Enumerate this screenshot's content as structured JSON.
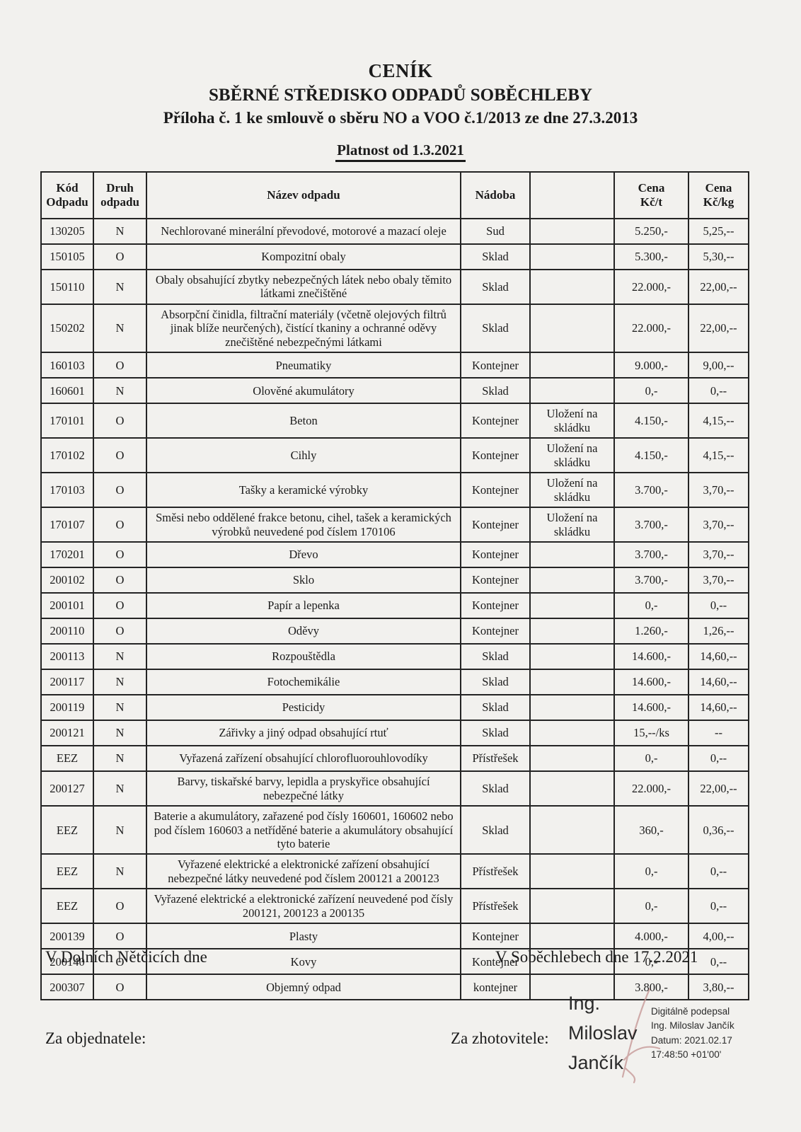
{
  "header": {
    "title": "CENÍK",
    "subtitle": "SBĚRNÉ STŘEDISKO ODPADŮ SOBĚCHLEBY",
    "attachment": "Příloha č. 1 ke smlouvě o sběru NO a VOO č.1/2013 ze dne 27.3.2013",
    "validity": "Platnost od 1.3.2021"
  },
  "table": {
    "headers": {
      "code": "Kód\nOdpadu",
      "type": "Druh\nodpadu",
      "name": "Název odpadu",
      "container": "Nádoba",
      "note": "",
      "price_t": "Cena\nKč/t",
      "price_kg": "Cena\nKč/kg"
    },
    "rows": [
      {
        "code": "130205",
        "type": "N",
        "name": "Nechlorované minerální převodové, motorové a mazací oleje",
        "container": "Sud",
        "note": "",
        "price_t": "5.250,-",
        "price_kg": "5,25,--"
      },
      {
        "code": "150105",
        "type": "O",
        "name": "Kompozitní obaly",
        "container": "Sklad",
        "note": "",
        "price_t": "5.300,-",
        "price_kg": "5,30,--"
      },
      {
        "code": "150110",
        "type": "N",
        "name": "Obaly obsahující zbytky nebezpečných látek nebo obaly těmito látkami znečištěné",
        "container": "Sklad",
        "note": "",
        "price_t": "22.000,-",
        "price_kg": "22,00,--"
      },
      {
        "code": "150202",
        "type": "N",
        "name": "Absorpční činidla, filtrační materiály (včetně olejových filtrů jinak blíže neurčených), čistící tkaniny a ochranné oděvy znečištěné nebezpečnými látkami",
        "container": "Sklad",
        "note": "",
        "price_t": "22.000,-",
        "price_kg": "22,00,--"
      },
      {
        "code": "160103",
        "type": "O",
        "name": "Pneumatiky",
        "container": "Kontejner",
        "note": "",
        "price_t": "9.000,-",
        "price_kg": "9,00,--"
      },
      {
        "code": "160601",
        "type": "N",
        "name": "Olověné akumulátory",
        "container": "Sklad",
        "note": "",
        "price_t": "0,-",
        "price_kg": "0,--"
      },
      {
        "code": "170101",
        "type": "O",
        "name": "Beton",
        "container": "Kontejner",
        "note": "Uložení na skládku",
        "price_t": "4.150,-",
        "price_kg": "4,15,--"
      },
      {
        "code": "170102",
        "type": "O",
        "name": "Cihly",
        "container": "Kontejner",
        "note": "Uložení na skládku",
        "price_t": "4.150,-",
        "price_kg": "4,15,--"
      },
      {
        "code": "170103",
        "type": "O",
        "name": "Tašky a keramické výrobky",
        "container": "Kontejner",
        "note": "Uložení na skládku",
        "price_t": "3.700,-",
        "price_kg": "3,70,--"
      },
      {
        "code": "170107",
        "type": "O",
        "name": "Směsi nebo oddělené frakce betonu, cihel, tašek a keramických výrobků neuvedené pod číslem 170106",
        "container": "Kontejner",
        "note": "Uložení na skládku",
        "price_t": "3.700,-",
        "price_kg": "3,70,--"
      },
      {
        "code": "170201",
        "type": "O",
        "name": "Dřevo",
        "container": "Kontejner",
        "note": "",
        "price_t": "3.700,-",
        "price_kg": "3,70,--"
      },
      {
        "code": "200102",
        "type": "O",
        "name": "Sklo",
        "container": "Kontejner",
        "note": "",
        "price_t": "3.700,-",
        "price_kg": "3,70,--"
      },
      {
        "code": "200101",
        "type": "O",
        "name": "Papír a lepenka",
        "container": "Kontejner",
        "note": "",
        "price_t": "0,-",
        "price_kg": "0,--"
      },
      {
        "code": "200110",
        "type": "O",
        "name": "Oděvy",
        "container": "Kontejner",
        "note": "",
        "price_t": "1.260,-",
        "price_kg": "1,26,--"
      },
      {
        "code": "200113",
        "type": "N",
        "name": "Rozpouštědla",
        "container": "Sklad",
        "note": "",
        "price_t": "14.600,-",
        "price_kg": "14,60,--"
      },
      {
        "code": "200117",
        "type": "N",
        "name": "Fotochemikálie",
        "container": "Sklad",
        "note": "",
        "price_t": "14.600,-",
        "price_kg": "14,60,--"
      },
      {
        "code": "200119",
        "type": "N",
        "name": "Pesticidy",
        "container": "Sklad",
        "note": "",
        "price_t": "14.600,-",
        "price_kg": "14,60,--"
      },
      {
        "code": "200121",
        "type": "N",
        "name": "Zářivky a jiný odpad obsahující rtuť",
        "container": "Sklad",
        "note": "",
        "price_t": "15,--/ks",
        "price_kg": "--"
      },
      {
        "code": "EEZ",
        "type": "N",
        "name": "Vyřazená zařízení obsahující chlorofluorouhlovodíky",
        "container": "Přístřešek",
        "note": "",
        "price_t": "0,-",
        "price_kg": "0,--"
      },
      {
        "code": "200127",
        "type": "N",
        "name": "Barvy, tiskařské barvy, lepidla a pryskyřice obsahující nebezpečné látky",
        "container": "Sklad",
        "note": "",
        "price_t": "22.000,-",
        "price_kg": "22,00,--"
      },
      {
        "code": "EEZ",
        "type": "N",
        "name": "Baterie a akumulátory, zařazené pod čísly 160601, 160602 nebo pod číslem 160603 a netříděné baterie a akumulátory obsahující tyto baterie",
        "container": "Sklad",
        "note": "",
        "price_t": "360,-",
        "price_kg": "0,36,--"
      },
      {
        "code": "EEZ",
        "type": "N",
        "name": "Vyřazené elektrické a elektronické zařízení obsahující nebezpečné látky neuvedené pod číslem 200121 a 200123",
        "container": "Přístřešek",
        "note": "",
        "price_t": "0,-",
        "price_kg": "0,--"
      },
      {
        "code": "EEZ",
        "type": "O",
        "name": "Vyřazené elektrické a elektronické zařízení neuvedené pod čísly 200121, 200123 a 200135",
        "container": "Přístřešek",
        "note": "",
        "price_t": "0,-",
        "price_kg": "0,--"
      },
      {
        "code": "200139",
        "type": "O",
        "name": "Plasty",
        "container": "Kontejner",
        "note": "",
        "price_t": "4.000,-",
        "price_kg": "4,00,--"
      },
      {
        "code": "200140",
        "type": "O",
        "name": "Kovy",
        "container": "Kontejner",
        "note": "",
        "price_t": "0,-",
        "price_kg": "0,--"
      },
      {
        "code": "200307",
        "type": "O",
        "name": "Objemný odpad",
        "container": "kontejner",
        "note": "",
        "price_t": "3.800,-",
        "price_kg": "3,80,--"
      }
    ]
  },
  "footer": {
    "place_left": "V Dolních Nětčicích dne",
    "place_right": "V Soběchlebech dne 17.2.2021",
    "for_customer": "Za objednatele:",
    "for_contractor": "Za zhotovitele:",
    "signer_name": "Ing.\nMiloslav\nJančík",
    "digital_signature": "Digitálně podepsal\nIng. Miloslav Jančík\nDatum: 2021.02.17\n17:48:50 +01'00'"
  },
  "colors": {
    "paper": "#f2f1ee",
    "ink": "#1b1b1b",
    "signature_stroke": "#c39392"
  }
}
